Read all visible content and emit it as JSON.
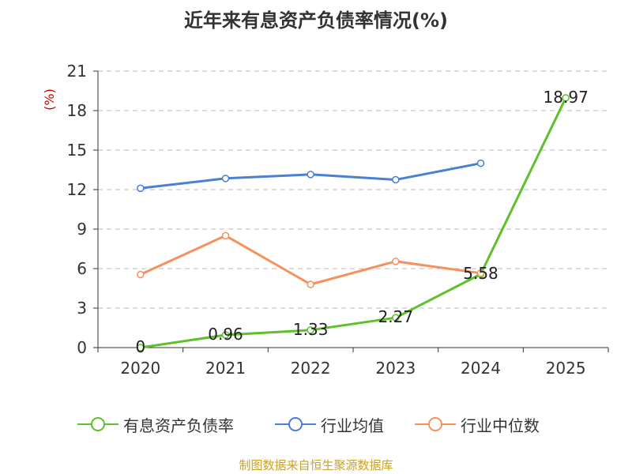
{
  "chart_data": {
    "type": "line",
    "title": "近年来有息资产负债率情况(%)",
    "ylabel": "(%)",
    "xlabel": "",
    "categories": [
      "2020",
      "2021",
      "2022",
      "2023",
      "2024",
      "2025"
    ],
    "ylim": [
      0,
      21
    ],
    "yticks": [
      0,
      3,
      6,
      9,
      12,
      15,
      18,
      21
    ],
    "grid": true,
    "legend_position": "bottom",
    "series": [
      {
        "name": "有息资产负债率",
        "color": "#5cc12a",
        "values": [
          0,
          0.96,
          1.33,
          2.27,
          5.58,
          18.97
        ],
        "labels": [
          "0",
          "0.96",
          "1.33",
          "2.27",
          "5.58",
          "18.97"
        ]
      },
      {
        "name": "行业均值",
        "color": "#4a7fd6",
        "values": [
          12.1,
          12.85,
          13.15,
          12.75,
          14.0,
          null
        ]
      },
      {
        "name": "行业中位数",
        "color": "#f6905c",
        "values": [
          5.55,
          8.5,
          4.8,
          6.55,
          5.65,
          null
        ]
      }
    ]
  },
  "footer": {
    "source": "制图数据来自恒生聚源数据库"
  }
}
